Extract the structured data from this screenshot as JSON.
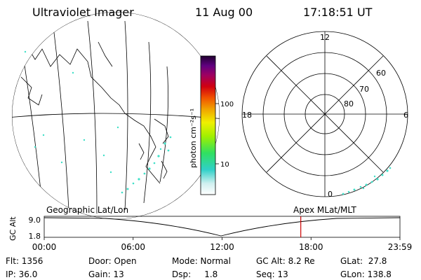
{
  "header": {
    "instrument": "Ultraviolet Imager",
    "date": "11 Aug 00",
    "time": "17:18:51 UT"
  },
  "colorbar": {
    "label": "photon cm⁻²s⁻¹",
    "ticks": [
      "100",
      "10"
    ]
  },
  "polar": {
    "mlt_labels": [
      "12",
      "18",
      "6",
      "0"
    ],
    "lat_labels": [
      "60",
      "70",
      "80"
    ]
  },
  "timeline": {
    "left_label": "Geographic Lat/Lon",
    "right_label": "Apex MLat/MLT",
    "y_axis_title": "GC Alt",
    "y_ticks": [
      "9.0",
      "1.8"
    ],
    "x_ticks": [
      "00:00",
      "06:00",
      "12:00",
      "18:00",
      "23:59"
    ],
    "marker_time_hours": 17.31,
    "marker_color": "#cc0000"
  },
  "footer": {
    "flt": "Flt: 1356",
    "ip": "IP: 36.0",
    "door": "Door: Open",
    "gain": "Gain: 13",
    "mode": "Mode: Normal",
    "dsp": "Dsp:     1.8",
    "gcalt": "GC Alt: 8.2 Re",
    "seq": "Seq: 13",
    "glat": "GLat:  27.8",
    "glon": "GLon: 138.8"
  },
  "colors": {
    "aurora_dot": "#40e0c8",
    "marker": "#cc0000"
  }
}
